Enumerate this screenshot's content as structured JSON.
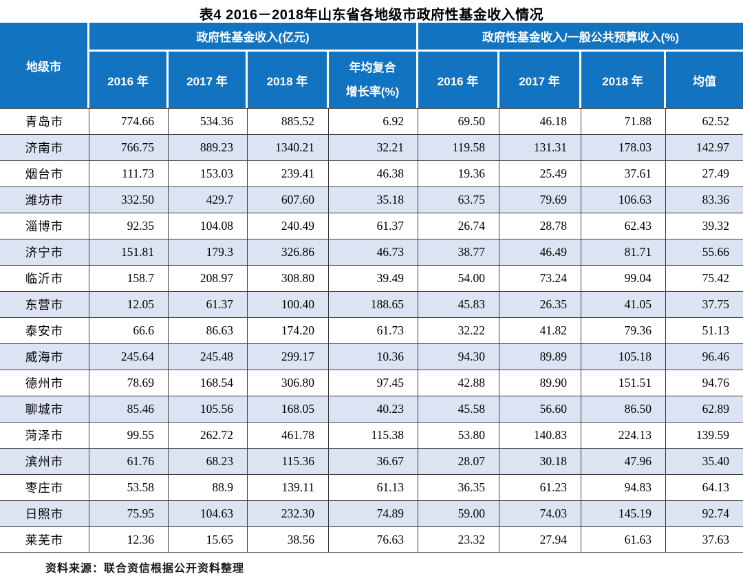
{
  "title": "表4  2016－2018年山东省各地级市政府性基金收入情况",
  "header": {
    "city": "地级市",
    "group_left": "政府性基金收入(亿元)",
    "group_right": "政府性基金收入/一般公共预算收入(%)",
    "sub_left": {
      "y2016": "2016 年",
      "y2017": "2017 年",
      "y2018": "2018 年",
      "cagr_line1": "年均复合",
      "cagr_line2": "增长率(%)"
    },
    "sub_right": {
      "y2016": "2016 年",
      "y2017": "2017 年",
      "y2018": "2018 年",
      "mean": "均值"
    }
  },
  "source_note": "资料来源：联合资信根据公开资料整理",
  "colors": {
    "header_bg": "#1273C0",
    "header_text": "#FFFFFF",
    "alt_row_bg": "#DCE4F3",
    "grid_line": "#3A3A3A"
  },
  "chart_data": {
    "type": "table",
    "columns": [
      "地级市",
      "政府性基金收入(亿元) 2016年",
      "政府性基金收入(亿元) 2017年",
      "政府性基金收入(亿元) 2018年",
      "年均复合增长率(%)",
      "政府性基金收入/一般公共预算收入(%) 2016年",
      "政府性基金收入/一般公共预算收入(%) 2017年",
      "政府性基金收入/一般公共预算收入(%) 2018年",
      "均值"
    ],
    "rows": [
      [
        "青岛市",
        "774.66",
        "534.36",
        "885.52",
        "6.92",
        "69.50",
        "46.18",
        "71.88",
        "62.52"
      ],
      [
        "济南市",
        "766.75",
        "889.23",
        "1340.21",
        "32.21",
        "119.58",
        "131.31",
        "178.03",
        "142.97"
      ],
      [
        "烟台市",
        "111.73",
        "153.03",
        "239.41",
        "46.38",
        "19.36",
        "25.49",
        "37.61",
        "27.49"
      ],
      [
        "潍坊市",
        "332.50",
        "429.7",
        "607.60",
        "35.18",
        "63.75",
        "79.69",
        "106.63",
        "83.36"
      ],
      [
        "淄博市",
        "92.35",
        "104.08",
        "240.49",
        "61.37",
        "26.74",
        "28.78",
        "62.43",
        "39.32"
      ],
      [
        "济宁市",
        "151.81",
        "179.3",
        "326.86",
        "46.73",
        "38.77",
        "46.49",
        "81.71",
        "55.66"
      ],
      [
        "临沂市",
        "158.7",
        "208.97",
        "308.80",
        "39.49",
        "54.00",
        "73.24",
        "99.04",
        "75.42"
      ],
      [
        "东营市",
        "12.05",
        "61.37",
        "100.40",
        "188.65",
        "45.83",
        "26.35",
        "41.05",
        "37.75"
      ],
      [
        "泰安市",
        "66.6",
        "86.63",
        "174.20",
        "61.73",
        "32.22",
        "41.82",
        "79.36",
        "51.13"
      ],
      [
        "威海市",
        "245.64",
        "245.48",
        "299.17",
        "10.36",
        "94.30",
        "89.89",
        "105.18",
        "96.46"
      ],
      [
        "德州市",
        "78.69",
        "168.54",
        "306.80",
        "97.45",
        "42.88",
        "89.90",
        "151.51",
        "94.76"
      ],
      [
        "聊城市",
        "85.46",
        "105.56",
        "168.05",
        "40.23",
        "45.58",
        "56.60",
        "86.50",
        "62.89"
      ],
      [
        "菏泽市",
        "99.55",
        "262.72",
        "461.78",
        "115.38",
        "53.80",
        "140.83",
        "224.13",
        "139.59"
      ],
      [
        "滨州市",
        "61.76",
        "68.23",
        "115.36",
        "36.67",
        "28.07",
        "30.18",
        "47.96",
        "35.40"
      ],
      [
        "枣庄市",
        "53.58",
        "88.9",
        "139.11",
        "61.13",
        "36.35",
        "61.23",
        "94.83",
        "64.13"
      ],
      [
        "日照市",
        "75.95",
        "104.63",
        "232.30",
        "74.89",
        "59.00",
        "74.03",
        "145.19",
        "92.74"
      ],
      [
        "莱芜市",
        "12.36",
        "15.65",
        "38.56",
        "76.63",
        "23.32",
        "27.94",
        "61.63",
        "37.63"
      ]
    ]
  }
}
